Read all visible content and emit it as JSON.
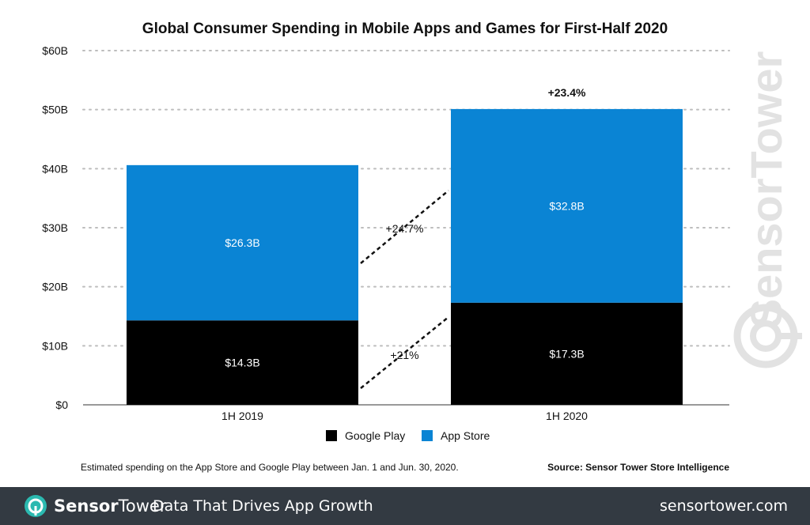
{
  "chart_data": {
    "type": "bar",
    "stacked": true,
    "title": "Global Consumer Spending in Mobile Apps and Games for First-Half 2020",
    "categories": [
      "1H 2019",
      "1H 2020"
    ],
    "series": [
      {
        "name": "Google Play",
        "color": "#000000",
        "values": [
          14.3,
          17.3
        ],
        "labels": [
          "$14.3B",
          "$17.3B"
        ]
      },
      {
        "name": "App Store",
        "color": "#0a84d4",
        "values": [
          26.3,
          32.8
        ],
        "labels": [
          "$26.3B",
          "$32.8B"
        ]
      }
    ],
    "ylim": [
      0,
      60
    ],
    "yticks": [
      0,
      10,
      20,
      30,
      40,
      50,
      60
    ],
    "ytick_labels": [
      "$0",
      "$10B",
      "$20B",
      "$30B",
      "$40B",
      "$50B",
      "$60B"
    ],
    "grid": true,
    "legend_position": "bottom",
    "growth_annotations": {
      "total": "+23.4%",
      "app_store": "+24.7%",
      "google_play": "+21%"
    },
    "note": "Estimated spending on the App Store and Google Play between Jan. 1 and Jun. 30, 2020.",
    "source": "Source: Sensor Tower Store Intelligence",
    "watermark": "SensorTower"
  },
  "footer": {
    "brand_part1": "Sensor",
    "brand_part2": "Tower",
    "tagline": "Data That Drives App Growth",
    "site": "sensortower.com",
    "logo_icon": "sensor-tower-logo-icon"
  }
}
